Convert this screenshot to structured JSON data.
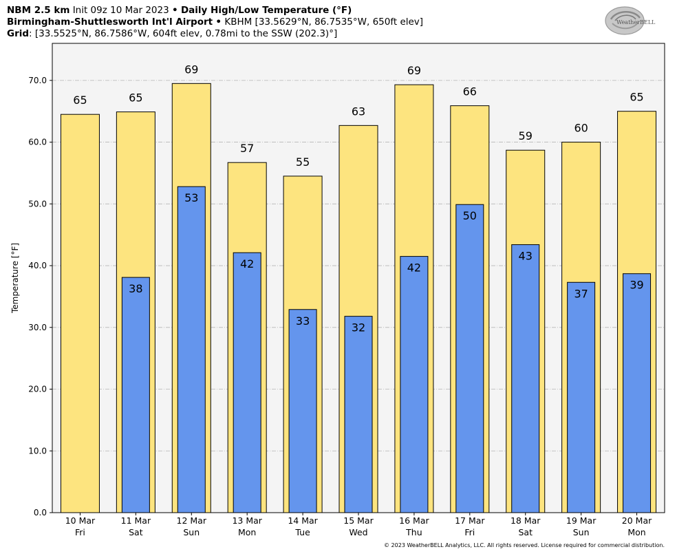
{
  "header": {
    "line1": {
      "model": "NBM 2.5 km",
      "init": "Init 09z 10 Mar 2023",
      "sep": "•",
      "product": "Daily High/Low Temperature (°F)"
    },
    "line2": {
      "station": "Birmingham-Shuttlesworth Int'l Airport",
      "sep": "•",
      "details": "KBHM [33.5629°N, 86.7535°W, 650ft elev]"
    },
    "line3": {
      "label": "Grid",
      "details": ": [33.5525°N, 86.7586°W, 604ft elev, 0.78mi to the SSW (202.3)°]"
    }
  },
  "logo": {
    "text": "WeatherBELL"
  },
  "footer": "© 2023 WeatherBELL Analytics, LLC. All rights reserved. License required for commercial distribution.",
  "colors": {
    "high": "#fde47f",
    "low": "#6495ed",
    "plot_bg": "#f4f4f4",
    "grid": "#b5b5b5"
  },
  "chart_data": {
    "type": "bar",
    "ylabel": "Temperature [°F]",
    "ylim": [
      0,
      76
    ],
    "yticks": [
      0,
      10,
      20,
      30,
      40,
      50,
      60,
      70
    ],
    "ytick_labels": [
      "0.0",
      "10.0",
      "20.0",
      "30.0",
      "40.0",
      "50.0",
      "60.0",
      "70.0"
    ],
    "grid": true,
    "categories": [
      {
        "date": "10 Mar",
        "day": "Fri"
      },
      {
        "date": "11 Mar",
        "day": "Sat"
      },
      {
        "date": "12 Mar",
        "day": "Sun"
      },
      {
        "date": "13 Mar",
        "day": "Mon"
      },
      {
        "date": "14 Mar",
        "day": "Tue"
      },
      {
        "date": "15 Mar",
        "day": "Wed"
      },
      {
        "date": "16 Mar",
        "day": "Thu"
      },
      {
        "date": "17 Mar",
        "day": "Fri"
      },
      {
        "date": "18 Mar",
        "day": "Sat"
      },
      {
        "date": "19 Mar",
        "day": "Sun"
      },
      {
        "date": "20 Mar",
        "day": "Mon"
      }
    ],
    "series": [
      {
        "values": [
          64.5,
          64.9,
          69.5,
          56.7,
          54.5,
          62.7,
          69.3,
          65.9,
          58.7,
          60.0,
          65.0
        ],
        "labels": [
          "65",
          "65",
          "69",
          "57",
          "55",
          "63",
          "69",
          "66",
          "59",
          "60",
          "65"
        ]
      },
      {
        "values": [
          null,
          38.1,
          52.8,
          42.1,
          32.9,
          31.8,
          41.5,
          49.9,
          43.4,
          37.3,
          38.7
        ],
        "labels": [
          null,
          "38",
          "53",
          "42",
          "33",
          "32",
          "42",
          "50",
          "43",
          "37",
          "39"
        ]
      }
    ]
  }
}
